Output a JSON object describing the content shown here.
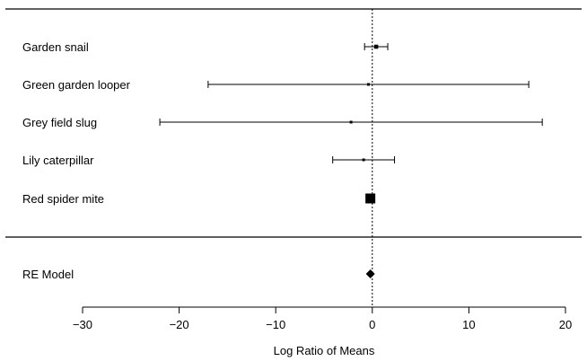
{
  "chart_data": {
    "type": "forest",
    "title": "",
    "xlabel": "Log Ratio of Means",
    "ylabel": "",
    "xlim": [
      -30,
      20
    ],
    "xticks": [
      -30,
      -20,
      -10,
      0,
      10,
      20
    ],
    "xtick_labels": [
      "−30",
      "−20",
      "−10",
      "0",
      "10",
      "20"
    ],
    "reference_line": 0,
    "studies": [
      {
        "label": "Garden snail",
        "estimate": 0.4,
        "ci_low": -0.8,
        "ci_high": 1.6,
        "weight": "small"
      },
      {
        "label": "Green garden looper",
        "estimate": -0.4,
        "ci_low": -17.0,
        "ci_high": 16.2,
        "weight": "tiny"
      },
      {
        "label": "Grey field slug",
        "estimate": -2.2,
        "ci_low": -22.0,
        "ci_high": 17.6,
        "weight": "tiny"
      },
      {
        "label": "Lily caterpillar",
        "estimate": -0.9,
        "ci_low": -4.1,
        "ci_high": 2.3,
        "weight": "tiny"
      },
      {
        "label": "Red spider mite",
        "estimate": -0.2,
        "ci_low": -0.5,
        "ci_high": 0.1,
        "weight": "large"
      }
    ],
    "summary": {
      "label": "RE Model",
      "estimate": -0.2,
      "ci_low": -0.5,
      "ci_high": 0.1
    }
  }
}
